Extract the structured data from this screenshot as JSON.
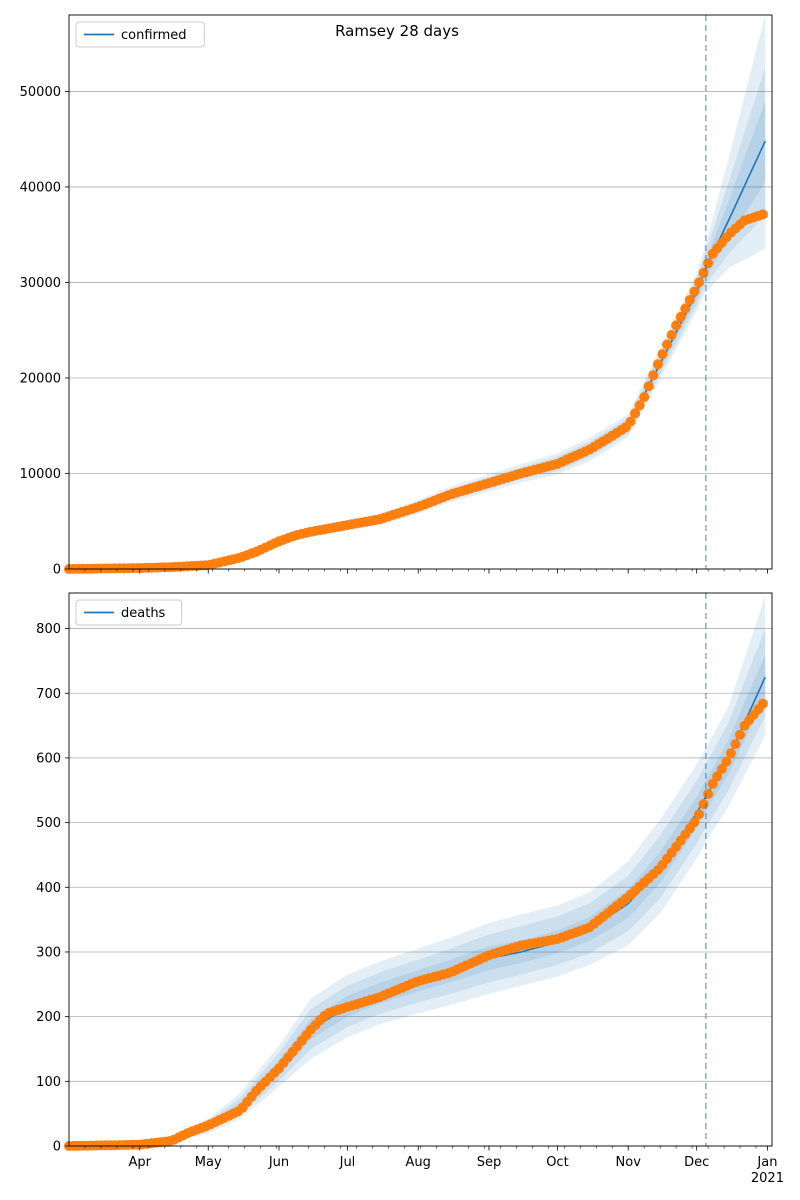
{
  "figure_title": "Ramsey 28 days",
  "chart_data": [
    {
      "type": "line",
      "legend": "confirmed",
      "legend_position": "top-left",
      "grid": "horizontal",
      "x_ticks": [
        "Apr",
        "May",
        "Jun",
        "Jul",
        "Aug",
        "Sep",
        "Oct",
        "Nov",
        "Dec",
        "Jan"
      ],
      "x_year_label": "2021",
      "forecast_start": "2020-12-05",
      "ylim": [
        0,
        58000
      ],
      "y_ticks": [
        0,
        10000,
        20000,
        30000,
        40000,
        50000
      ],
      "colors": {
        "fit": "#1f77b4",
        "observed": "#ff7f0e",
        "band": "#1f77b4"
      },
      "fit": {
        "dates": [
          "2020-03-01",
          "2020-04-01",
          "2020-05-01",
          "2020-05-15",
          "2020-06-01",
          "2020-06-15",
          "2020-07-01",
          "2020-07-15",
          "2020-08-01",
          "2020-08-15",
          "2020-09-01",
          "2020-09-15",
          "2020-10-01",
          "2020-10-15",
          "2020-11-01",
          "2020-11-15",
          "2020-12-01",
          "2020-12-05",
          "2020-12-15",
          "2020-12-31"
        ],
        "values": [
          0,
          50,
          150,
          1200,
          2900,
          3900,
          4600,
          5200,
          6500,
          7800,
          9000,
          10000,
          11000,
          12500,
          15000,
          21500,
          29000,
          31500,
          36500,
          44800
        ]
      },
      "bands": [
        {
          "lower": [
            0,
            50,
            120,
            1000,
            2500,
            3400,
            4050,
            4600,
            5800,
            7000,
            8100,
            9050,
            9900,
            11300,
            13800,
            19900,
            27000,
            29000,
            31500,
            33500
          ],
          "upper": [
            0,
            60,
            180,
            1400,
            3300,
            4400,
            5150,
            5800,
            7200,
            8600,
            9900,
            10950,
            12100,
            13700,
            16200,
            23100,
            31000,
            34000,
            43000,
            58000
          ]
        },
        {
          "lower": [
            0,
            50,
            130,
            1070,
            2640,
            3570,
            4240,
            4800,
            6040,
            7280,
            8400,
            9370,
            10260,
            11700,
            14200,
            20400,
            27650,
            29800,
            33000,
            37000
          ],
          "upper": [
            0,
            55,
            170,
            1330,
            3160,
            4230,
            4960,
            5600,
            6960,
            8320,
            9600,
            10630,
            11740,
            13300,
            15800,
            22600,
            30350,
            33200,
            40500,
            52500
          ]
        },
        {
          "lower": [
            0,
            50,
            140,
            1130,
            2770,
            3730,
            4420,
            5000,
            6270,
            7540,
            8700,
            9690,
            10630,
            12100,
            14600,
            20950,
            28300,
            30650,
            34500,
            40500
          ],
          "upper": [
            0,
            55,
            160,
            1270,
            3030,
            4070,
            4780,
            5400,
            6730,
            8060,
            9300,
            10310,
            11370,
            12900,
            15400,
            22050,
            29700,
            32350,
            38500,
            49000
          ]
        }
      ],
      "observed": {
        "dates": [
          "2020-03-01",
          "2020-04-01",
          "2020-04-15",
          "2020-05-01",
          "2020-05-08",
          "2020-05-15",
          "2020-05-22",
          "2020-06-01",
          "2020-06-08",
          "2020-06-15",
          "2020-06-22",
          "2020-07-01",
          "2020-07-15",
          "2020-08-01",
          "2020-08-15",
          "2020-09-01",
          "2020-09-15",
          "2020-10-01",
          "2020-10-15",
          "2020-10-22",
          "2020-11-01",
          "2020-11-08",
          "2020-11-15",
          "2020-11-22",
          "2020-12-01",
          "2020-12-08",
          "2020-12-15",
          "2020-12-22",
          "2020-12-31"
        ],
        "values": [
          0,
          100,
          200,
          400,
          800,
          1200,
          1800,
          2900,
          3500,
          3900,
          4200,
          4600,
          5200,
          6500,
          7800,
          9000,
          10000,
          11000,
          12500,
          13500,
          15000,
          18000,
          22000,
          25500,
          29500,
          33000,
          35000,
          36500,
          37200
        ]
      }
    },
    {
      "type": "line",
      "legend": "deaths",
      "legend_position": "top-left",
      "grid": "horizontal",
      "x_ticks": [
        "Apr",
        "May",
        "Jun",
        "Jul",
        "Aug",
        "Sep",
        "Oct",
        "Nov",
        "Dec",
        "Jan"
      ],
      "x_year_label": "2021",
      "forecast_start": "2020-12-05",
      "ylim": [
        0,
        855
      ],
      "y_ticks": [
        0,
        100,
        200,
        300,
        400,
        500,
        600,
        700,
        800
      ],
      "colors": {
        "fit": "#1f77b4",
        "observed": "#ff7f0e",
        "band": "#1f77b4"
      },
      "fit": {
        "dates": [
          "2020-03-01",
          "2020-04-01",
          "2020-04-15",
          "2020-05-01",
          "2020-05-15",
          "2020-06-01",
          "2020-06-15",
          "2020-07-01",
          "2020-07-15",
          "2020-08-01",
          "2020-08-15",
          "2020-09-01",
          "2020-09-15",
          "2020-10-01",
          "2020-10-15",
          "2020-11-01",
          "2020-11-15",
          "2020-12-01",
          "2020-12-05",
          "2020-12-15",
          "2020-12-31"
        ],
        "values": [
          0,
          2,
          10,
          30,
          60,
          120,
          180,
          215,
          235,
          255,
          270,
          290,
          300,
          315,
          335,
          375,
          430,
          515,
          540,
          600,
          725
        ]
      },
      "bands": [
        {
          "lower": [
            0,
            1,
            6,
            20,
            42,
            92,
            135,
            168,
            188,
            205,
            218,
            235,
            248,
            262,
            280,
            310,
            360,
            445,
            470,
            525,
            635
          ],
          "upper": [
            0,
            3,
            15,
            42,
            82,
            155,
            228,
            265,
            285,
            305,
            322,
            345,
            358,
            372,
            392,
            440,
            505,
            590,
            615,
            680,
            850
          ]
        },
        {
          "lower": [
            0,
            1,
            7,
            23,
            48,
            101,
            150,
            184,
            204,
            222,
            235,
            253,
            265,
            280,
            298,
            332,
            383,
            468,
            493,
            550,
            665
          ],
          "upper": [
            0,
            3,
            13,
            38,
            74,
            144,
            212,
            248,
            268,
            288,
            305,
            327,
            340,
            355,
            375,
            418,
            480,
            565,
            590,
            655,
            800
          ]
        },
        {
          "lower": [
            0,
            2,
            8,
            26,
            54,
            111,
            165,
            200,
            220,
            239,
            253,
            272,
            283,
            298,
            317,
            353,
            407,
            492,
            517,
            575,
            695
          ],
          "upper": [
            0,
            2,
            12,
            34,
            67,
            132,
            196,
            232,
            252,
            272,
            288,
            309,
            318,
            333,
            354,
            397,
            455,
            540,
            565,
            628,
            760
          ]
        }
      ],
      "observed": {
        "dates": [
          "2020-03-01",
          "2020-04-01",
          "2020-04-15",
          "2020-04-22",
          "2020-05-01",
          "2020-05-15",
          "2020-05-22",
          "2020-06-01",
          "2020-06-08",
          "2020-06-15",
          "2020-06-22",
          "2020-07-01",
          "2020-07-15",
          "2020-08-01",
          "2020-08-15",
          "2020-09-01",
          "2020-09-15",
          "2020-10-01",
          "2020-10-15",
          "2020-11-01",
          "2020-11-15",
          "2020-12-01",
          "2020-12-08",
          "2020-12-15",
          "2020-12-22",
          "2020-12-31"
        ],
        "values": [
          0,
          2,
          8,
          20,
          32,
          55,
          85,
          120,
          150,
          180,
          205,
          215,
          230,
          255,
          268,
          295,
          310,
          320,
          338,
          385,
          430,
          505,
          560,
          600,
          650,
          688
        ]
      }
    }
  ]
}
